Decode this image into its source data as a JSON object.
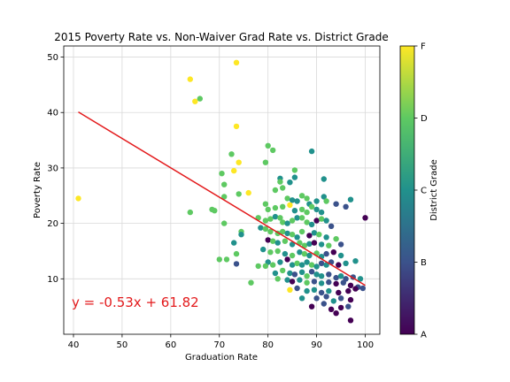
{
  "chart_data": {
    "type": "scatter",
    "title": "2015 Poverty Rate vs. Non-Waiver Grad Rate vs. District Grade",
    "xlabel": "Graduation Rate",
    "ylabel": "Poverty Rate",
    "xlim": [
      38,
      103
    ],
    "ylim": [
      0,
      52
    ],
    "xticks": [
      "40",
      "50",
      "60",
      "70",
      "80",
      "90",
      "100"
    ],
    "yticks": [
      "10",
      "20",
      "30",
      "40",
      "50"
    ],
    "grid": true,
    "regression": {
      "slope": -0.53,
      "intercept": 61.82,
      "x_range": [
        41,
        100
      ],
      "color": "#e31a1c"
    },
    "equation_label": "y = -0.53x + 61.82",
    "colorbar": {
      "label": "District Grade",
      "colormap": "viridis",
      "grade_values": [
        0,
        1,
        2,
        3,
        4
      ],
      "tick_labels": [
        "A",
        "B",
        "C",
        "D",
        "F"
      ]
    },
    "points": [
      [
        41,
        24.5,
        4
      ],
      [
        64,
        46,
        4
      ],
      [
        65,
        42,
        4
      ],
      [
        66,
        42.5,
        3
      ],
      [
        73.5,
        49,
        4
      ],
      [
        73.5,
        37.5,
        4
      ],
      [
        74,
        31,
        4
      ],
      [
        73,
        29.5,
        4
      ],
      [
        72.5,
        32.5,
        3
      ],
      [
        70.5,
        29,
        3
      ],
      [
        71,
        27,
        3
      ],
      [
        74,
        25.3,
        3
      ],
      [
        76,
        25.5,
        4
      ],
      [
        71,
        24.8,
        3
      ],
      [
        64,
        22,
        3
      ],
      [
        68.5,
        22.5,
        3
      ],
      [
        69,
        22.3,
        3
      ],
      [
        71,
        20,
        3
      ],
      [
        74.5,
        18.5,
        3
      ],
      [
        74.5,
        18,
        2
      ],
      [
        73,
        16.5,
        2
      ],
      [
        73.5,
        14.5,
        3
      ],
      [
        70,
        13.5,
        3
      ],
      [
        71.5,
        13.5,
        3
      ],
      [
        73.5,
        12.7,
        1
      ],
      [
        78,
        12.3,
        3
      ],
      [
        76.5,
        9.3,
        3
      ],
      [
        80,
        34,
        3
      ],
      [
        81,
        33.2,
        3
      ],
      [
        79.5,
        31,
        3
      ],
      [
        89,
        33,
        2
      ],
      [
        85.5,
        29.6,
        3
      ],
      [
        85.5,
        28.3,
        2
      ],
      [
        82.5,
        28.1,
        2
      ],
      [
        82.5,
        27.5,
        3
      ],
      [
        84.5,
        27.4,
        2
      ],
      [
        83,
        26.4,
        3
      ],
      [
        81.5,
        26,
        3
      ],
      [
        84,
        24.5,
        3
      ],
      [
        85,
        24.2,
        2
      ],
      [
        86,
        24,
        2
      ],
      [
        87,
        25,
        3
      ],
      [
        88,
        24.5,
        3
      ],
      [
        90,
        24,
        2
      ],
      [
        91.5,
        28,
        2
      ],
      [
        91.5,
        24.8,
        2
      ],
      [
        92,
        24,
        3
      ],
      [
        94,
        23.5,
        1
      ],
      [
        96,
        23,
        1
      ],
      [
        97,
        24.3,
        2
      ],
      [
        100,
        21,
        0
      ],
      [
        79.5,
        23.5,
        3
      ],
      [
        80,
        22.5,
        3
      ],
      [
        81.5,
        22.8,
        3
      ],
      [
        83,
        23,
        3
      ],
      [
        84.5,
        23.3,
        4
      ],
      [
        85.5,
        22.3,
        2
      ],
      [
        87,
        22.5,
        3
      ],
      [
        88,
        22,
        3
      ],
      [
        88.5,
        23.5,
        2
      ],
      [
        89,
        23,
        3
      ],
      [
        90,
        22.5,
        2
      ],
      [
        91,
        22,
        2
      ],
      [
        78,
        21,
        3
      ],
      [
        79.5,
        20.5,
        3
      ],
      [
        80.5,
        20.8,
        3
      ],
      [
        81.5,
        21.2,
        2
      ],
      [
        82.5,
        21,
        3
      ],
      [
        83,
        20.2,
        3
      ],
      [
        84,
        20,
        2
      ],
      [
        85,
        20.5,
        3
      ],
      [
        86,
        21,
        2
      ],
      [
        87,
        21,
        3
      ],
      [
        88,
        20.2,
        3
      ],
      [
        89,
        19.8,
        2
      ],
      [
        90,
        20.5,
        0
      ],
      [
        91,
        20.8,
        3
      ],
      [
        92,
        20.5,
        2
      ],
      [
        93,
        19.5,
        1
      ],
      [
        78.5,
        19.2,
        2
      ],
      [
        79.5,
        19,
        3
      ],
      [
        80.5,
        18.5,
        3
      ],
      [
        82,
        18.2,
        3
      ],
      [
        83,
        18.5,
        3
      ],
      [
        84,
        18.2,
        2
      ],
      [
        85,
        18,
        3
      ],
      [
        86,
        17.5,
        2
      ],
      [
        87,
        18.5,
        3
      ],
      [
        88.5,
        17.8,
        0
      ],
      [
        89.5,
        18.3,
        2
      ],
      [
        90.5,
        18,
        3
      ],
      [
        92,
        17.5,
        2
      ],
      [
        94,
        17.2,
        3
      ],
      [
        80,
        17,
        0
      ],
      [
        81,
        16.8,
        3
      ],
      [
        82,
        16.5,
        2
      ],
      [
        83.5,
        16.8,
        3
      ],
      [
        85,
        16.2,
        2
      ],
      [
        86.5,
        16.5,
        3
      ],
      [
        87.5,
        16,
        3
      ],
      [
        88.5,
        16.3,
        2
      ],
      [
        89.5,
        16.5,
        0
      ],
      [
        91,
        16.2,
        2
      ],
      [
        92.5,
        16,
        3
      ],
      [
        95,
        16.2,
        1
      ],
      [
        79,
        15.3,
        2
      ],
      [
        80.5,
        14.8,
        3
      ],
      [
        82,
        15,
        3
      ],
      [
        83.5,
        14.5,
        2
      ],
      [
        85,
        14.2,
        3
      ],
      [
        86.5,
        14.8,
        2
      ],
      [
        87.5,
        14.5,
        3
      ],
      [
        88.5,
        14.2,
        2
      ],
      [
        90,
        14.6,
        3
      ],
      [
        91,
        14,
        2
      ],
      [
        92,
        14.5,
        1
      ],
      [
        93.5,
        14.8,
        0
      ],
      [
        95,
        14.2,
        2
      ],
      [
        80,
        13,
        2
      ],
      [
        81,
        12.5,
        3
      ],
      [
        82.5,
        13,
        2
      ],
      [
        84,
        13.5,
        0
      ],
      [
        85,
        12.5,
        2
      ],
      [
        86,
        12.8,
        3
      ],
      [
        87,
        12.5,
        2
      ],
      [
        88,
        13,
        2
      ],
      [
        89,
        12.5,
        3
      ],
      [
        90,
        12.2,
        2
      ],
      [
        91,
        12.8,
        1
      ],
      [
        92,
        12.5,
        2
      ],
      [
        93,
        13,
        1
      ],
      [
        94.5,
        12.5,
        0
      ],
      [
        96,
        12.8,
        2
      ],
      [
        98,
        13.2,
        2
      ],
      [
        79.5,
        12.3,
        3
      ],
      [
        81.5,
        11,
        2
      ],
      [
        83,
        11.5,
        3
      ],
      [
        84.5,
        11,
        2
      ],
      [
        85.5,
        10.8,
        1
      ],
      [
        87,
        11.2,
        2
      ],
      [
        88,
        10.5,
        3
      ],
      [
        89,
        11.3,
        1
      ],
      [
        90,
        10.8,
        2
      ],
      [
        91,
        10.5,
        2
      ],
      [
        92.5,
        10.8,
        1
      ],
      [
        94,
        10.2,
        1
      ],
      [
        95,
        10.5,
        2
      ],
      [
        96,
        10,
        1
      ],
      [
        97.5,
        10.3,
        1
      ],
      [
        99,
        10,
        2
      ],
      [
        82,
        10,
        3
      ],
      [
        84,
        9.8,
        2
      ],
      [
        85,
        9.5,
        0
      ],
      [
        86.5,
        9.8,
        2
      ],
      [
        88,
        9.3,
        3
      ],
      [
        89.5,
        9.5,
        1
      ],
      [
        91,
        9.2,
        2
      ],
      [
        92.5,
        9.4,
        1
      ],
      [
        94,
        9.1,
        0
      ],
      [
        95.5,
        9.3,
        1
      ],
      [
        97,
        8.8,
        0
      ],
      [
        98.5,
        8.5,
        1
      ],
      [
        99.5,
        8.3,
        1
      ],
      [
        84.5,
        8,
        4
      ],
      [
        86,
        8.3,
        1
      ],
      [
        88,
        7.8,
        2
      ],
      [
        89.5,
        8,
        2
      ],
      [
        91,
        7.5,
        1
      ],
      [
        92.5,
        7.8,
        2
      ],
      [
        94.5,
        7.5,
        0
      ],
      [
        96.5,
        7.8,
        0
      ],
      [
        98,
        8.2,
        0
      ],
      [
        87,
        6.5,
        2
      ],
      [
        90,
        6.5,
        1
      ],
      [
        92,
        6.8,
        1
      ],
      [
        93.5,
        6,
        2
      ],
      [
        95,
        6.5,
        1
      ],
      [
        97,
        6.2,
        0
      ],
      [
        91.5,
        5.5,
        1
      ],
      [
        93,
        4.5,
        0
      ],
      [
        95,
        4.8,
        0
      ],
      [
        96.5,
        5,
        1
      ],
      [
        89,
        5,
        0
      ],
      [
        94,
        3.8,
        0
      ],
      [
        97,
        2.5,
        0
      ]
    ]
  }
}
